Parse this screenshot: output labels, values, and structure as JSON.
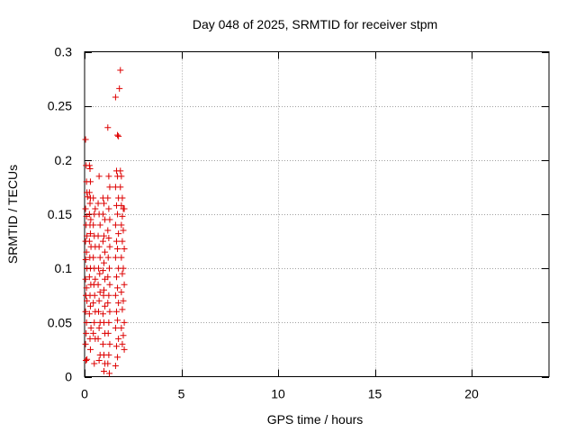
{
  "chart_data": {
    "type": "scatter",
    "title": "Day 048 of 2025, SRMTID for receiver stpm",
    "xlabel": "GPS time / hours",
    "ylabel": "SRMTID / TECUs",
    "xlim": [
      0,
      24
    ],
    "ylim": [
      0,
      0.3
    ],
    "x_ticks": [
      0,
      5,
      10,
      15,
      20
    ],
    "y_ticks": [
      0,
      0.05,
      0.1,
      0.15,
      0.2,
      0.25,
      0.3
    ],
    "x_tick_labels": [
      "0",
      "5",
      "10",
      "15",
      "20"
    ],
    "y_tick_labels": [
      "0",
      "0.05",
      "0.1",
      "0.15",
      "0.2",
      "0.25",
      "0.3"
    ],
    "grid": true,
    "marker": "+",
    "colors": {
      "points": "#dd0000",
      "grid": "#a0a0a0",
      "axes": "#000000"
    },
    "series": [
      {
        "name": "SRMTID",
        "points": [
          [
            0.05,
            0.219
          ],
          [
            0.08,
            0.195
          ],
          [
            0.1,
            0.18
          ],
          [
            0.12,
            0.17
          ],
          [
            0.15,
            0.166
          ],
          [
            0.05,
            0.155
          ],
          [
            0.1,
            0.148
          ],
          [
            0.08,
            0.14
          ],
          [
            0.12,
            0.13
          ],
          [
            0.05,
            0.125
          ],
          [
            0.1,
            0.115
          ],
          [
            0.06,
            0.108
          ],
          [
            0.12,
            0.1
          ],
          [
            0.05,
            0.09
          ],
          [
            0.1,
            0.082
          ],
          [
            0.07,
            0.075
          ],
          [
            0.12,
            0.07
          ],
          [
            0.05,
            0.06
          ],
          [
            0.1,
            0.05
          ],
          [
            0.08,
            0.04
          ],
          [
            0.05,
            0.03
          ],
          [
            0.12,
            0.016
          ],
          [
            0.07,
            0.015
          ],
          [
            0.25,
            0.195
          ],
          [
            0.28,
            0.192
          ],
          [
            0.3,
            0.18
          ],
          [
            0.25,
            0.17
          ],
          [
            0.3,
            0.165
          ],
          [
            0.28,
            0.16
          ],
          [
            0.25,
            0.15
          ],
          [
            0.32,
            0.145
          ],
          [
            0.28,
            0.14
          ],
          [
            0.3,
            0.132
          ],
          [
            0.25,
            0.125
          ],
          [
            0.33,
            0.12
          ],
          [
            0.27,
            0.11
          ],
          [
            0.3,
            0.1
          ],
          [
            0.25,
            0.092
          ],
          [
            0.32,
            0.085
          ],
          [
            0.28,
            0.075
          ],
          [
            0.3,
            0.065
          ],
          [
            0.25,
            0.058
          ],
          [
            0.33,
            0.045
          ],
          [
            0.28,
            0.035
          ],
          [
            0.3,
            0.025
          ],
          [
            0.5,
            0.15
          ],
          [
            0.45,
            0.14
          ],
          [
            0.5,
            0.13
          ],
          [
            0.55,
            0.12
          ],
          [
            0.45,
            0.11
          ],
          [
            0.5,
            0.1
          ],
          [
            0.55,
            0.09
          ],
          [
            0.48,
            0.085
          ],
          [
            0.52,
            0.075
          ],
          [
            0.45,
            0.068
          ],
          [
            0.55,
            0.06
          ],
          [
            0.5,
            0.05
          ],
          [
            0.45,
            0.04
          ],
          [
            0.55,
            0.035
          ],
          [
            0.5,
            0.012
          ],
          [
            0.45,
            0.165
          ],
          [
            0.55,
            0.155
          ],
          [
            0.75,
            0.185
          ],
          [
            0.7,
            0.16
          ],
          [
            0.75,
            0.15
          ],
          [
            0.8,
            0.14
          ],
          [
            0.7,
            0.13
          ],
          [
            0.75,
            0.12
          ],
          [
            0.8,
            0.11
          ],
          [
            0.72,
            0.1
          ],
          [
            0.78,
            0.095
          ],
          [
            0.7,
            0.085
          ],
          [
            0.8,
            0.078
          ],
          [
            0.75,
            0.07
          ],
          [
            0.72,
            0.06
          ],
          [
            0.8,
            0.05
          ],
          [
            0.75,
            0.045
          ],
          [
            0.7,
            0.035
          ],
          [
            0.8,
            0.02
          ],
          [
            0.75,
            0.015
          ],
          [
            0.95,
            0.165
          ],
          [
            1.0,
            0.16
          ],
          [
            0.95,
            0.15
          ],
          [
            1.05,
            0.145
          ],
          [
            1.0,
            0.13
          ],
          [
            0.95,
            0.125
          ],
          [
            1.05,
            0.115
          ],
          [
            1.0,
            0.105
          ],
          [
            0.95,
            0.098
          ],
          [
            1.05,
            0.09
          ],
          [
            1.0,
            0.08
          ],
          [
            0.98,
            0.075
          ],
          [
            1.05,
            0.065
          ],
          [
            0.95,
            0.058
          ],
          [
            1.0,
            0.05
          ],
          [
            1.05,
            0.04
          ],
          [
            0.95,
            0.03
          ],
          [
            1.0,
            0.02
          ],
          [
            1.05,
            0.012
          ],
          [
            1.0,
            0.005
          ],
          [
            1.2,
            0.23
          ],
          [
            1.25,
            0.185
          ],
          [
            1.3,
            0.175
          ],
          [
            1.2,
            0.165
          ],
          [
            1.25,
            0.155
          ],
          [
            1.3,
            0.145
          ],
          [
            1.2,
            0.135
          ],
          [
            1.25,
            0.128
          ],
          [
            1.3,
            0.12
          ],
          [
            1.22,
            0.11
          ],
          [
            1.28,
            0.1
          ],
          [
            1.2,
            0.092
          ],
          [
            1.3,
            0.085
          ],
          [
            1.25,
            0.075
          ],
          [
            1.2,
            0.068
          ],
          [
            1.3,
            0.06
          ],
          [
            1.25,
            0.05
          ],
          [
            1.22,
            0.04
          ],
          [
            1.3,
            0.03
          ],
          [
            1.25,
            0.02
          ],
          [
            1.2,
            0.012
          ],
          [
            1.28,
            0.003
          ],
          [
            1.6,
            0.258
          ],
          [
            1.7,
            0.223
          ],
          [
            1.75,
            0.222
          ],
          [
            1.65,
            0.19
          ],
          [
            1.7,
            0.185
          ],
          [
            1.6,
            0.175
          ],
          [
            1.75,
            0.165
          ],
          [
            1.65,
            0.158
          ],
          [
            1.7,
            0.15
          ],
          [
            1.6,
            0.14
          ],
          [
            1.75,
            0.132
          ],
          [
            1.65,
            0.125
          ],
          [
            1.7,
            0.118
          ],
          [
            1.6,
            0.11
          ],
          [
            1.75,
            0.1
          ],
          [
            1.65,
            0.092
          ],
          [
            1.7,
            0.082
          ],
          [
            1.6,
            0.075
          ],
          [
            1.75,
            0.068
          ],
          [
            1.65,
            0.06
          ],
          [
            1.7,
            0.052
          ],
          [
            1.6,
            0.045
          ],
          [
            1.75,
            0.035
          ],
          [
            1.65,
            0.028
          ],
          [
            1.7,
            0.018
          ],
          [
            1.6,
            0.01
          ],
          [
            1.85,
            0.283
          ],
          [
            1.8,
            0.266
          ],
          [
            1.85,
            0.19
          ],
          [
            1.9,
            0.185
          ],
          [
            1.85,
            0.175
          ],
          [
            1.95,
            0.165
          ],
          [
            1.9,
            0.158
          ],
          [
            2.0,
            0.155
          ],
          [
            1.95,
            0.148
          ],
          [
            2.05,
            0.155
          ],
          [
            1.9,
            0.14
          ],
          [
            2.0,
            0.135
          ],
          [
            1.95,
            0.125
          ],
          [
            2.05,
            0.118
          ],
          [
            1.9,
            0.11
          ],
          [
            2.0,
            0.1
          ],
          [
            1.95,
            0.095
          ],
          [
            2.05,
            0.085
          ],
          [
            1.9,
            0.078
          ],
          [
            2.0,
            0.07
          ],
          [
            1.95,
            0.062
          ],
          [
            2.05,
            0.05
          ],
          [
            1.9,
            0.045
          ],
          [
            2.0,
            0.038
          ],
          [
            1.95,
            0.03
          ],
          [
            2.05,
            0.025
          ]
        ]
      }
    ]
  }
}
